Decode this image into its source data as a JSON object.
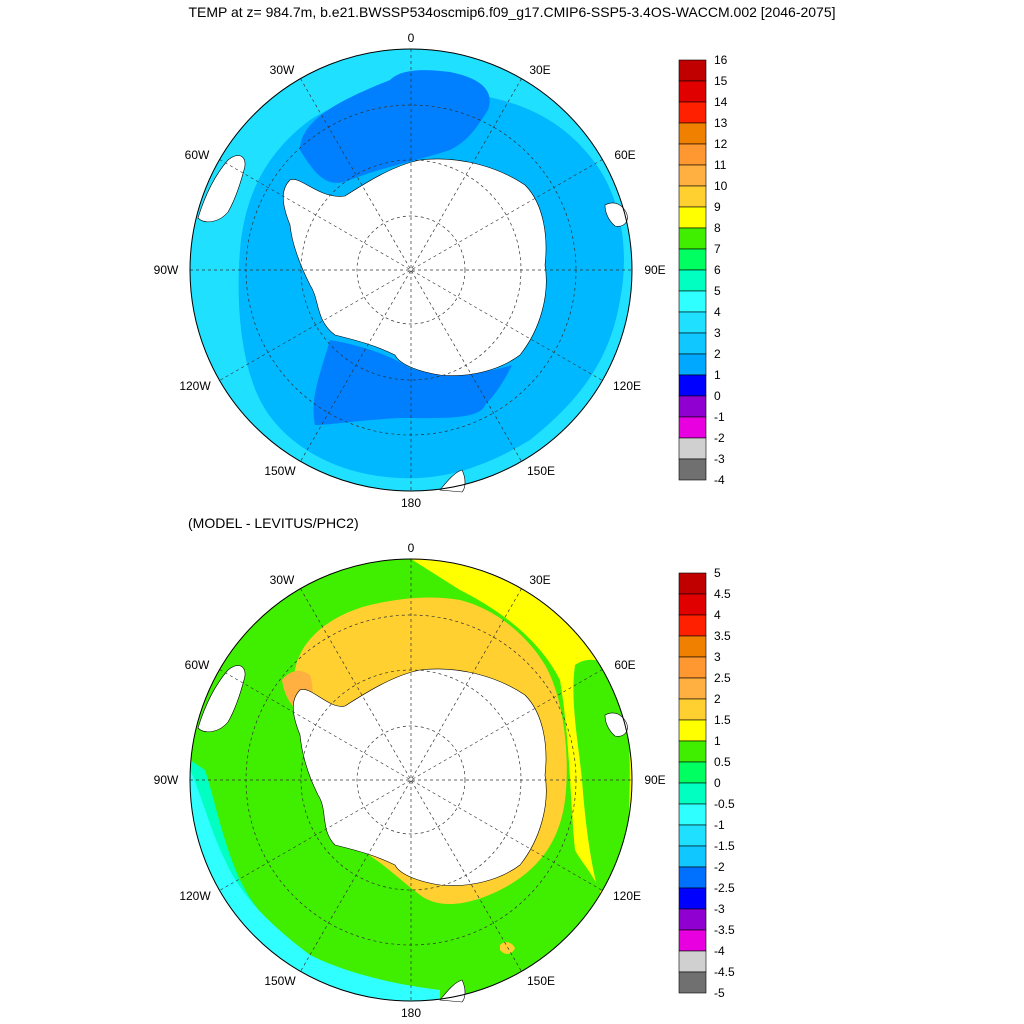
{
  "title": "TEMP at z= 984.7m, b.e21.BWSSP534oscmip6.f09_g17.CMIP6-SSP5-3.4OS-WACCM.002 [2046-2075]",
  "subtitle": "(MODEL - LEVITUS/PHC2)",
  "longitude_labels": {
    "north": "0",
    "nne": "30E",
    "ene": "60E",
    "east": "90E",
    "ese": "120E",
    "sse": "150E",
    "south": "180",
    "ssw": "150W",
    "wsw": "120W",
    "west": "90W",
    "wnw": "60W",
    "nnw": "30W"
  },
  "colorbars": {
    "top": {
      "labels": [
        "16",
        "15",
        "14",
        "13",
        "12",
        "11",
        "10",
        "9",
        "8",
        "7",
        "6",
        "5",
        "4",
        "3",
        "2",
        "1",
        "0",
        "-1",
        "-2",
        "-3",
        "-4"
      ],
      "colors": [
        "#c00000",
        "#e00000",
        "#ff2000",
        "#f08000",
        "#ff9830",
        "#ffb040",
        "#ffd030",
        "#ffff00",
        "#40ee00",
        "#00ff60",
        "#00ffc0",
        "#30ffff",
        "#20e0ff",
        "#10c8ff",
        "#00a8ff",
        "#0000ff",
        "#9000d0",
        "#e800e0",
        "#d0d0d0",
        "#707070"
      ]
    },
    "bottom": {
      "labels": [
        "5",
        "4.5",
        "4",
        "3.5",
        "3",
        "2.5",
        "2",
        "1.5",
        "1",
        "0.5",
        "0",
        "-0.5",
        "-1",
        "-1.5",
        "-2",
        "-2.5",
        "-3",
        "-3.5",
        "-4",
        "-4.5",
        "-5"
      ],
      "colors": [
        "#c00000",
        "#e00000",
        "#ff2000",
        "#f08000",
        "#ff9830",
        "#ffb040",
        "#ffd030",
        "#ffff00",
        "#40ee00",
        "#00ff60",
        "#00ffc0",
        "#30ffff",
        "#20e0ff",
        "#10c8ff",
        "#0070ff",
        "#0000ff",
        "#9000d0",
        "#e800e0",
        "#d0d0d0",
        "#707070"
      ]
    }
  },
  "map_colors": {
    "land": "#ffffff",
    "top_base": "#00b8ff",
    "top_warm_ring": "#20e0ff",
    "top_cold_pool": "#0080ff",
    "bottom_base": "#40ee00",
    "bottom_cyan": "#30ffff",
    "bottom_lightcyan": "#00ffc0",
    "bottom_yellow": "#ffff00",
    "bottom_gold": "#ffd030",
    "bottom_orange": "#ffb040"
  }
}
